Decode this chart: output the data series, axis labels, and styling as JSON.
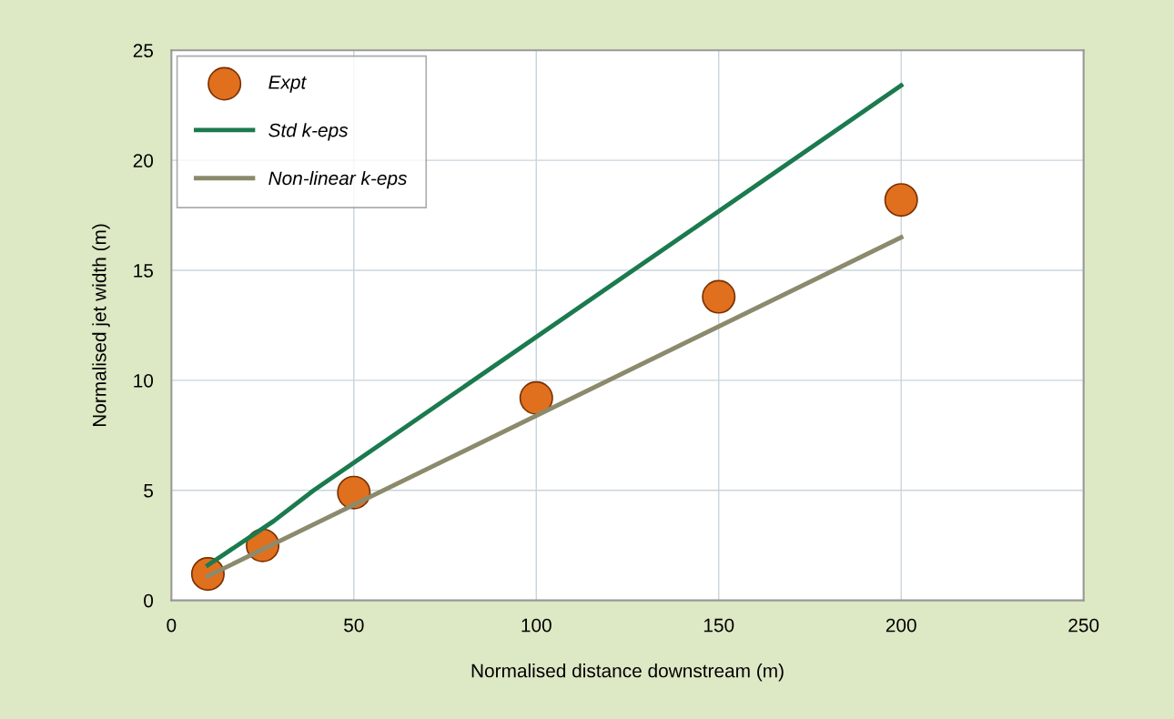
{
  "chart_data": {
    "type": "line",
    "xlabel": "Normalised distance downstream (m)",
    "ylabel": "Normalised jet width (m)",
    "xlim": [
      0,
      250
    ],
    "xticks": [
      0,
      50,
      100,
      150,
      200,
      250
    ],
    "ylim": [
      0,
      25
    ],
    "yticks": [
      0,
      5,
      10,
      15,
      20,
      25
    ],
    "grid": true,
    "legend": "top left",
    "series": [
      {
        "name": "Expt",
        "type": "scatter",
        "color": "#e0701e",
        "marker": "circle",
        "x": [
          10,
          25,
          50,
          100,
          150,
          200
        ],
        "values": [
          1.2,
          2.5,
          4.9,
          9.2,
          13.8,
          18.2
        ]
      },
      {
        "name": "Std k-eps",
        "color": "#1b7a4e",
        "x": [
          10,
          28,
          39,
          200
        ],
        "values": [
          1.6,
          3.6,
          5.0,
          23.4
        ]
      },
      {
        "name": "Non-linear k-eps",
        "color": "#8c8a6c",
        "x": [
          10,
          200
        ],
        "values": [
          1.1,
          16.5
        ]
      }
    ]
  }
}
